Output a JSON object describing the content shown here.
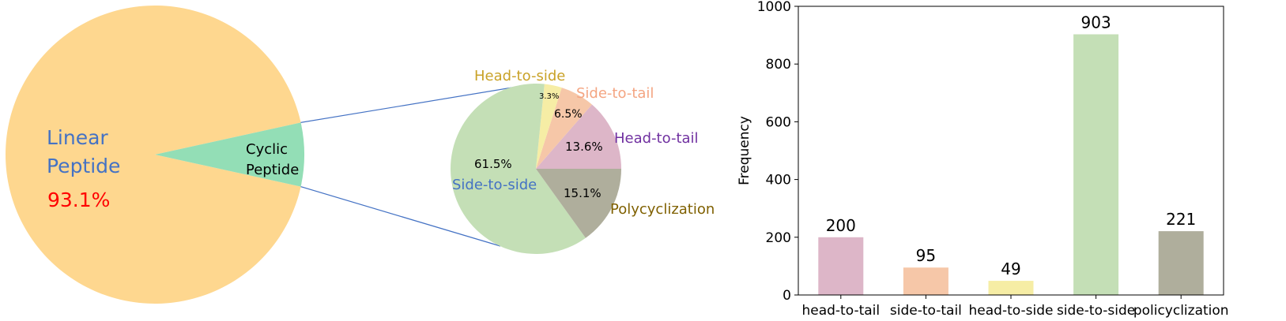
{
  "chart_data": [
    {
      "type": "pie",
      "slices": [
        {
          "label": "Linear\nPeptide",
          "percent_label": "93.1%",
          "value": 93.1,
          "color": "#fed78f",
          "label_color": "#4472c4",
          "percent_color": "#ff0000"
        },
        {
          "label": "Cyclic\nPeptide",
          "value": 6.9,
          "color": "#93deb6",
          "label_color": "#000000"
        }
      ]
    },
    {
      "type": "pie",
      "slices": [
        {
          "label": "Head-to-tail",
          "percent_label": "13.6%",
          "value": 13.6,
          "color": "#ddb6c8",
          "label_color": "#7030a0"
        },
        {
          "label": "Polycyclization",
          "percent_label": "15.1%",
          "value": 15.1,
          "color": "#afae9c",
          "label_color": "#7f6000"
        },
        {
          "label": "Side-to-side",
          "percent_label": "61.5%",
          "value": 61.5,
          "color": "#c4dfb6",
          "label_color": "#4472c4"
        },
        {
          "label": "Head-to-side",
          "percent_label": "3.3%",
          "value": 3.3,
          "color": "#f6eda5",
          "label_color": "#c9a227"
        },
        {
          "label": "Side-to-tail",
          "percent_label": "6.5%",
          "value": 6.5,
          "color": "#f6c7a8",
          "label_color": "#f4a582"
        }
      ]
    },
    {
      "type": "bar",
      "categories": [
        "head-to-tail",
        "side-to-tail",
        "head-to-side",
        "side-to-side",
        "policyclization"
      ],
      "values": [
        200,
        95,
        49,
        903,
        221
      ],
      "value_labels": [
        "200",
        "95",
        "49",
        "903",
        "221"
      ],
      "colors": [
        "#ddb6c8",
        "#f6c7a8",
        "#f6eda5",
        "#c4dfb6",
        "#afae9c"
      ],
      "xlabel": "",
      "ylabel": "Frequency",
      "ylim": [
        0,
        1000
      ],
      "yticks": [
        0,
        200,
        400,
        600,
        800,
        1000
      ],
      "grid": false
    }
  ],
  "connector_color": "#4472c4"
}
